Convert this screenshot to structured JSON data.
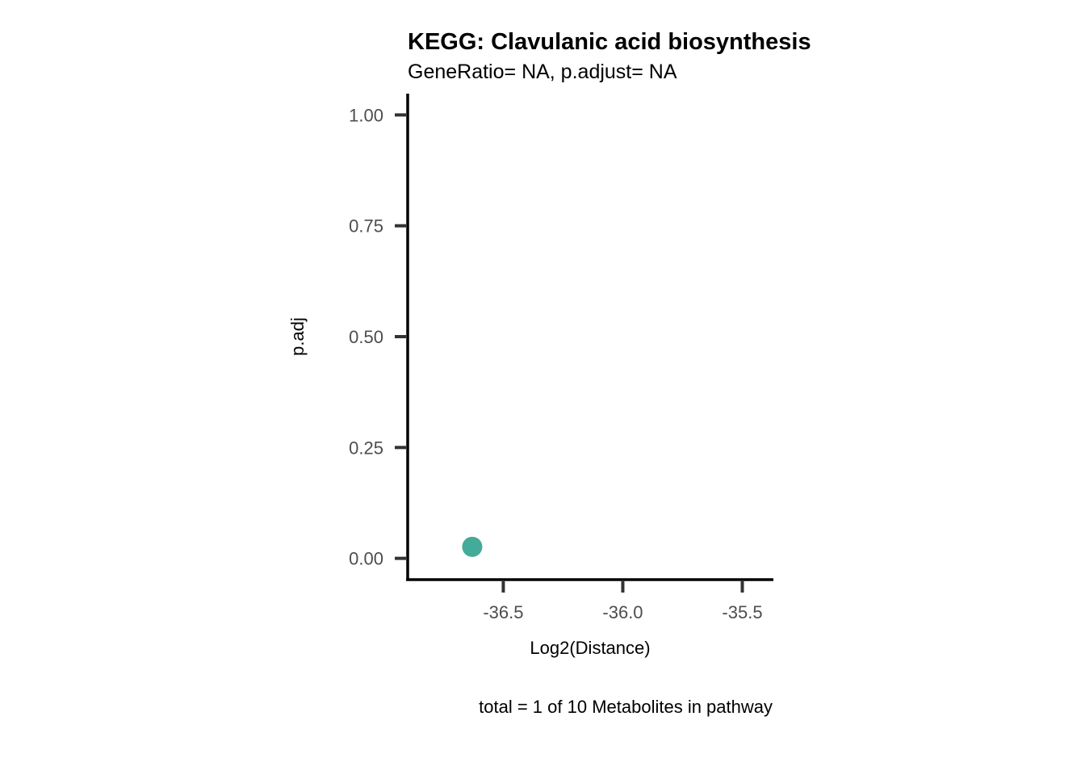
{
  "chart_data": {
    "type": "scatter",
    "title": "KEGG: Clavulanic acid biosynthesis",
    "subtitle": "GeneRatio= NA, p.adjust= NA",
    "xlabel": "Log2(Distance)",
    "ylabel": "p.adj",
    "caption": "total = 1 of 10 Metabolites in pathway",
    "xlim": [
      -36.9,
      -35.37
    ],
    "ylim": [
      -0.048,
      1.048
    ],
    "x_ticks": [
      -36.5,
      -36.0,
      -35.5
    ],
    "x_tick_labels": [
      "-36.5",
      "-36.0",
      "-35.5"
    ],
    "y_ticks": [
      0.0,
      0.25,
      0.5,
      0.75,
      1.0
    ],
    "y_tick_labels": [
      "0.00",
      "0.25",
      "0.50",
      "0.75",
      "1.00"
    ],
    "points": [
      {
        "x": -36.63,
        "y": 0.026
      }
    ],
    "point_color": "#44aa99",
    "grid": false,
    "legend": "none"
  }
}
